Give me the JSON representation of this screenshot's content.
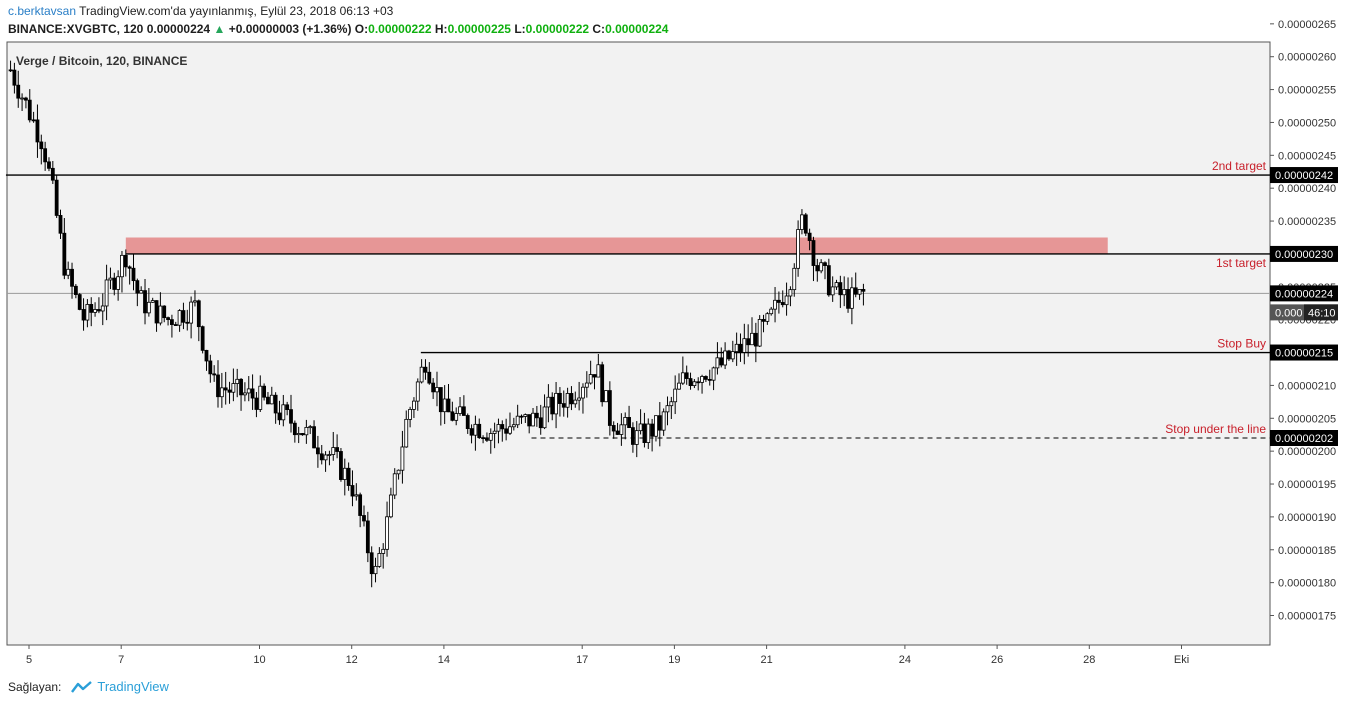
{
  "header": {
    "author": "c.berktavsan",
    "published": "TradingView.com'da yayınlanmış, Eylül 23, 2018 06:13 +03",
    "symbol": "BINANCE:XVGBTC, 120",
    "last": "0.00000224",
    "change": "+0.00000003 (+1.36%)",
    "o_label": "O:",
    "o": "0.00000222",
    "h_label": "H:",
    "h": "0.00000225",
    "l_label": "L:",
    "l": "0.00000222",
    "c_label": "C:",
    "c": "0.00000224",
    "up_arrow": "▲"
  },
  "chart_title": "Verge / Bitcoin, 120, BINANCE",
  "footer": {
    "label": "Sağlayan:",
    "brand": "TradingView",
    "brand_icon": "tradingview-logo-icon"
  },
  "colors": {
    "background": "#f2f2f2",
    "candle": "#000000",
    "zone": "#e69696",
    "annotation": "#c8202b",
    "brand": "#2a9fd8"
  },
  "chart_data": {
    "type": "candlestick",
    "title": "Verge / Bitcoin, 120, BINANCE",
    "y_axis_side": "right",
    "ylim": [
      1.75e-06,
      2.65e-06
    ],
    "y_ticks": [
      "0.00000175",
      "0.00000180",
      "0.00000185",
      "0.00000190",
      "0.00000195",
      "0.00000200",
      "0.00000205",
      "0.00000210",
      "0.00000215",
      "0.00000220",
      "0.00000225",
      "0.00000230",
      "0.00000235",
      "0.00000240",
      "0.00000245",
      "0.00000250",
      "0.00000255",
      "0.00000260",
      "0.00000265"
    ],
    "x_ticks": [
      {
        "day": 5,
        "label": "5"
      },
      {
        "day": 7,
        "label": "7"
      },
      {
        "day": 10,
        "label": "10"
      },
      {
        "day": 12,
        "label": "12"
      },
      {
        "day": 14,
        "label": "14"
      },
      {
        "day": 17,
        "label": "17"
      },
      {
        "day": 19,
        "label": "19"
      },
      {
        "day": 21,
        "label": "21"
      },
      {
        "day": 24,
        "label": "24"
      },
      {
        "day": 26,
        "label": "26"
      },
      {
        "day": 28,
        "label": "28"
      },
      {
        "day": 30,
        "label": "Eki"
      }
    ],
    "key_points": [
      {
        "day": 4.6,
        "price": 2.58e-06
      },
      {
        "day": 5.3,
        "price": 2.47e-06
      },
      {
        "day": 5.5,
        "price": 2.4e-06
      },
      {
        "day": 5.8,
        "price": 2.27e-06
      },
      {
        "day": 6.2,
        "price": 2.2e-06
      },
      {
        "day": 6.6,
        "price": 2.23e-06
      },
      {
        "day": 7.1,
        "price": 2.3e-06
      },
      {
        "day": 7.4,
        "price": 2.23e-06
      },
      {
        "day": 8.0,
        "price": 2.2e-06
      },
      {
        "day": 8.6,
        "price": 2.22e-06
      },
      {
        "day": 9.0,
        "price": 2.1e-06
      },
      {
        "day": 10.0,
        "price": 2.08e-06
      },
      {
        "day": 10.8,
        "price": 2.04e-06
      },
      {
        "day": 11.6,
        "price": 1.99e-06
      },
      {
        "day": 12.0,
        "price": 1.95e-06
      },
      {
        "day": 12.5,
        "price": 1.81e-06
      },
      {
        "day": 12.8,
        "price": 1.9e-06
      },
      {
        "day": 13.2,
        "price": 2.05e-06
      },
      {
        "day": 13.6,
        "price": 2.14e-06
      },
      {
        "day": 14.0,
        "price": 2.06e-06
      },
      {
        "day": 15.0,
        "price": 2.03e-06
      },
      {
        "day": 16.0,
        "price": 2.05e-06
      },
      {
        "day": 16.8,
        "price": 2.09e-06
      },
      {
        "day": 17.3,
        "price": 2.13e-06
      },
      {
        "day": 17.6,
        "price": 2.05e-06
      },
      {
        "day": 18.2,
        "price": 2.02e-06
      },
      {
        "day": 18.7,
        "price": 2.04e-06
      },
      {
        "day": 19.2,
        "price": 2.11e-06
      },
      {
        "day": 20.0,
        "price": 2.13e-06
      },
      {
        "day": 20.5,
        "price": 2.16e-06
      },
      {
        "day": 21.0,
        "price": 2.19e-06
      },
      {
        "day": 21.5,
        "price": 2.26e-06
      },
      {
        "day": 21.8,
        "price": 2.36e-06
      },
      {
        "day": 22.1,
        "price": 2.28e-06
      },
      {
        "day": 22.5,
        "price": 2.24e-06
      },
      {
        "day": 22.9,
        "price": 2.23e-06
      },
      {
        "day": 23.1,
        "price": 2.24e-06
      }
    ],
    "zone": {
      "from_day": 7.1,
      "to_day": 28.4,
      "low": 2.3e-06,
      "high": 2.325e-06
    },
    "levels": [
      {
        "price": 2.42e-06,
        "tag": "0.00000242",
        "label": "2nd target",
        "style": "solid",
        "from_day": 4.5
      },
      {
        "price": 2.3e-06,
        "tag": "0.00000230",
        "label": "1st target",
        "style": "solid",
        "from_day": 7.1
      },
      {
        "price": 2.15e-06,
        "tag": "0.00000215",
        "label": "Stop Buy",
        "style": "solid",
        "from_day": 13.5
      },
      {
        "price": 2.02e-06,
        "tag": "0.00000202",
        "label": "Stop under the line",
        "style": "dashed",
        "from_day": 15.9
      }
    ],
    "current_price": {
      "price": 2.24e-06,
      "tag": "0.00000224"
    },
    "countdown": {
      "price_prefix": "0.000",
      "timer": "46:10"
    }
  }
}
